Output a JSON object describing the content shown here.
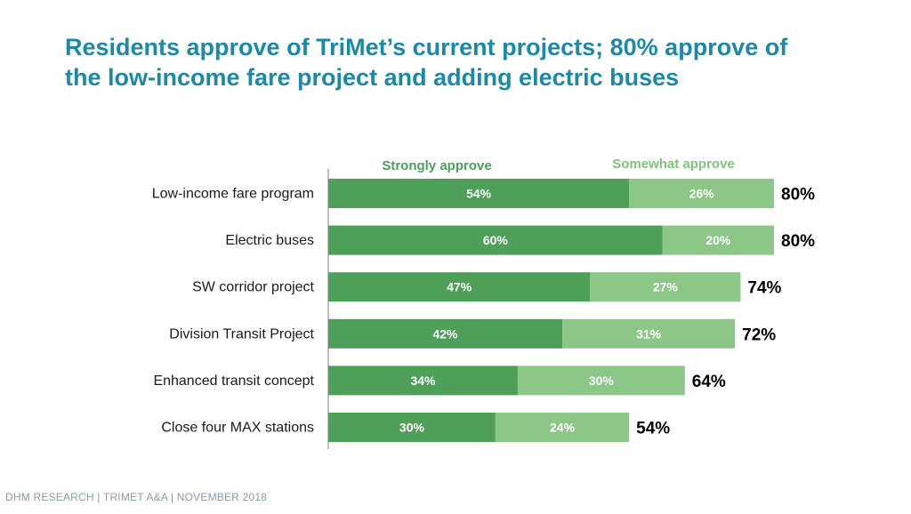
{
  "title_lines": [
    "Residents approve of TriMet’s current projects; 80% approve of",
    "the low-income fare project and adding electric buses"
  ],
  "footer": "DHM RESEARCH | TRIMET A&A | NOVEMBER 2018",
  "colors": {
    "title": "#1a8aa8",
    "strongly": "#4e9f57",
    "somewhat": "#8cc788",
    "somewhat_legend_text": "#7fc47c",
    "footer": "#8a9aa6"
  },
  "chart_data": {
    "type": "bar",
    "orientation": "horizontal",
    "stacked": true,
    "categories": [
      "Low-income fare program",
      "Electric buses",
      "SW corridor project",
      "Division Transit Project",
      "Enhanced transit concept",
      "Close four MAX stations"
    ],
    "series": [
      {
        "name": "Strongly approve",
        "values": [
          54,
          60,
          47,
          42,
          34,
          30
        ],
        "labels": [
          "54%",
          "60%",
          "47%",
          "42%",
          "34%",
          "30%"
        ]
      },
      {
        "name": "Somewhat approve",
        "values": [
          26,
          20,
          27,
          31,
          30,
          24
        ],
        "labels": [
          "26%",
          "20%",
          "27%",
          "31%",
          "30%",
          "24%"
        ]
      }
    ],
    "totals": [
      "80%",
      "80%",
      "74%",
      "72%",
      "64%",
      "54%"
    ],
    "xlim": [
      0,
      80
    ],
    "legend_placement": "top",
    "grid": false
  }
}
